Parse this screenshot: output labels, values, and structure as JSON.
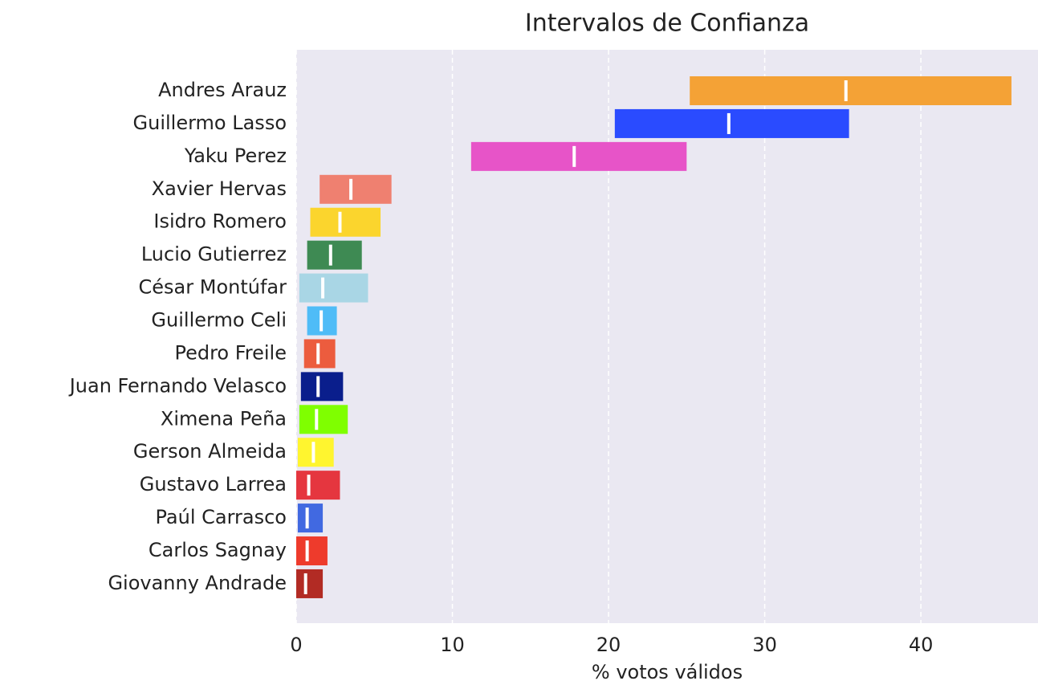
{
  "chart_data": {
    "type": "interval-bar",
    "title": "Intervalos de Confianza",
    "x_label": "% votos válidos",
    "categories": [
      "Andres Arauz",
      "Guillermo Lasso",
      "Yaku Perez",
      "Xavier Hervas",
      "Isidro Romero",
      "Lucio Gutierrez",
      "César Montúfar",
      "Guillermo Celi",
      "Pedro Freile",
      "Juan Fernando Velasco",
      "Ximena Peña",
      "Gerson Almeida",
      "Gustavo Larrea",
      "Paúl Carrasco",
      "Carlos Sagnay",
      "Giovanny Andrade"
    ],
    "low": [
      25.2,
      20.4,
      11.2,
      1.5,
      0.9,
      0.7,
      0.2,
      0.7,
      0.5,
      0.3,
      0.2,
      0.1,
      0.0,
      0.1,
      0.0,
      0.0
    ],
    "high": [
      45.8,
      35.4,
      25.0,
      6.1,
      5.4,
      4.2,
      4.6,
      2.6,
      2.5,
      3.0,
      3.3,
      2.4,
      2.8,
      1.7,
      2.0,
      1.7
    ],
    "estimate": [
      35.2,
      27.7,
      17.8,
      3.5,
      2.8,
      2.2,
      1.7,
      1.6,
      1.4,
      1.4,
      1.3,
      1.1,
      0.8,
      0.7,
      0.7,
      0.6
    ],
    "colors": [
      "#f4a236",
      "#2a4bff",
      "#e754c8",
      "#ef8070",
      "#fbd52d",
      "#3e8a53",
      "#a9d6e5",
      "#4fbcf7",
      "#ec5c3e",
      "#0a1e8c",
      "#7fff00",
      "#fff52f",
      "#e5363f",
      "#4169e1",
      "#ee3b2c",
      "#b22b24"
    ],
    "estimate_color": "#ffffff",
    "background": "#eae8f2",
    "xlim": [
      0,
      47.5
    ],
    "xticks": [
      0,
      10,
      20,
      30,
      40
    ],
    "grid": true
  }
}
